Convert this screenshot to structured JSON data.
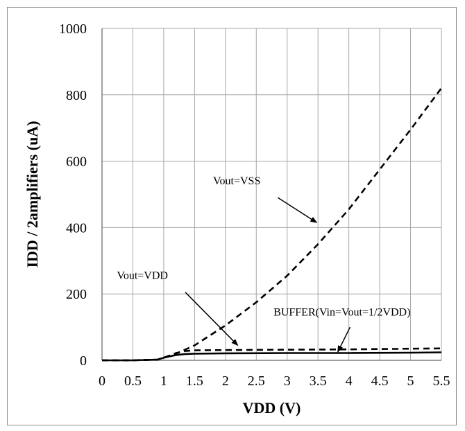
{
  "chart_data": {
    "type": "line",
    "xlabel": "VDD (V)",
    "ylabel": "IDD / 2amplifiers  (uA)",
    "xlim": [
      0,
      5.5
    ],
    "ylim": [
      0,
      1000
    ],
    "x_ticks": [
      "0",
      "0.5",
      "1",
      "1.5",
      "2",
      "2.5",
      "3",
      "3.5",
      "4",
      "4.5",
      "5",
      "5.5"
    ],
    "y_ticks": [
      "0",
      "200",
      "400",
      "600",
      "800",
      "1000"
    ],
    "grid": true,
    "series": [
      {
        "name": "Vout=VSS",
        "style": "dashed",
        "x": [
          0,
          0.5,
          0.9,
          1.0,
          1.2,
          1.5,
          2.0,
          2.5,
          3.0,
          3.5,
          4.0,
          4.5,
          5.0,
          5.5
        ],
        "y": [
          0,
          0,
          2,
          8,
          20,
          45,
          105,
          175,
          255,
          350,
          455,
          575,
          695,
          820
        ]
      },
      {
        "name": "Vout=VDD",
        "style": "dashed",
        "x": [
          0,
          0.5,
          0.9,
          1.0,
          1.2,
          1.35,
          1.5,
          2.0,
          3.0,
          4.0,
          5.0,
          5.5
        ],
        "y": [
          0,
          0,
          2,
          8,
          22,
          28,
          30,
          31,
          32,
          33,
          35,
          36
        ]
      },
      {
        "name": "BUFFER(Vin=Vout=1/2VDD)",
        "style": "solid",
        "x": [
          0,
          0.5,
          0.9,
          1.0,
          1.2,
          1.35,
          1.5,
          2.0,
          3.0,
          4.0,
          5.0,
          5.5
        ],
        "y": [
          0,
          0,
          2,
          8,
          16,
          19,
          20,
          21,
          22,
          22,
          23,
          24
        ]
      }
    ],
    "annotations": [
      {
        "text": "Vout=VSS",
        "text_at": [
          1.8,
          530
        ],
        "arrow_from": [
          2.85,
          490
        ],
        "arrow_to": [
          3.48,
          415
        ]
      },
      {
        "text": "Vout=VDD",
        "text_at": [
          0.24,
          245
        ],
        "arrow_from": [
          1.35,
          205
        ],
        "arrow_to": [
          2.2,
          45
        ]
      },
      {
        "text": "BUFFER(Vin=Vout=1/2VDD)",
        "text_at": [
          2.78,
          135
        ],
        "arrow_from": [
          4.02,
          100
        ],
        "arrow_to": [
          3.82,
          25
        ]
      }
    ]
  }
}
